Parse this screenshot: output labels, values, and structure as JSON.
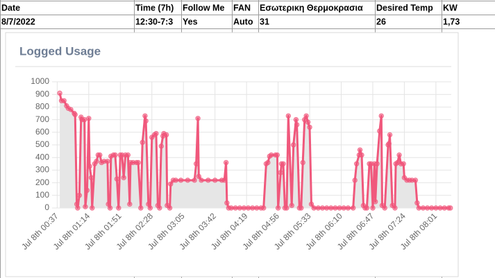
{
  "table": {
    "header": [
      "Date",
      "Time (7h)",
      "Follow Me",
      "FAN",
      "Εσωτερικη Θερμοκρασια",
      "Desired Temp",
      "KW"
    ],
    "rows": [
      [
        "8/7/2022",
        "12:30-7:3",
        "Yes",
        "Auto",
        "31",
        "26",
        "1,73"
      ]
    ]
  },
  "chart_data": {
    "type": "area",
    "title": "Logged Usage",
    "color": "#f0587c",
    "grid": true,
    "x": [
      40,
      42,
      45,
      48,
      50,
      53,
      57,
      58,
      60,
      61,
      63,
      65,
      66,
      69,
      70,
      72,
      74,
      75,
      77,
      78,
      81,
      83,
      85,
      87,
      89,
      92,
      96,
      97,
      99,
      100,
      103,
      105,
      107,
      109,
      111,
      113,
      115,
      117,
      120,
      122,
      123,
      126,
      130,
      132,
      135,
      137,
      140,
      141,
      144,
      146,
      148,
      151,
      153,
      155,
      157,
      159,
      161,
      162,
      165,
      166,
      169,
      170,
      173,
      176,
      182,
      190,
      198,
      200,
      202,
      203,
      206,
      214,
      222,
      230,
      233,
      235,
      236,
      238,
      241,
      246,
      251,
      256,
      261,
      266,
      271,
      276,
      279,
      282,
      284,
      286,
      288,
      293,
      295,
      296,
      299,
      300,
      302,
      304,
      306,
      308,
      312,
      314,
      317,
      318,
      321,
      323,
      325,
      327,
      329,
      331,
      333,
      335,
      338,
      343,
      348,
      353,
      358,
      363,
      368,
      373,
      378,
      384,
      386,
      388,
      391,
      392,
      394,
      396,
      398,
      400,
      403,
      405,
      407,
      409,
      410,
      412,
      415,
      417,
      418,
      421,
      425,
      426,
      427,
      430,
      433,
      434,
      436,
      438,
      440,
      443,
      444,
      447,
      450,
      453,
      457,
      459,
      461,
      466,
      471,
      476,
      481,
      486,
      491,
      496,
      498
    ],
    "values": [
      910,
      850,
      850,
      810,
      790,
      780,
      750,
      740,
      30,
      0,
      100,
      720,
      700,
      700,
      10,
      140,
      710,
      330,
      240,
      0,
      350,
      370,
      420,
      420,
      360,
      370,
      370,
      30,
      0,
      410,
      420,
      420,
      230,
      0,
      420,
      420,
      240,
      420,
      420,
      30,
      360,
      360,
      360,
      360,
      0,
      520,
      730,
      690,
      30,
      0,
      560,
      580,
      590,
      20,
      0,
      490,
      570,
      590,
      580,
      20,
      0,
      190,
      220,
      220,
      220,
      220,
      220,
      350,
      710,
      250,
      220,
      220,
      220,
      220,
      220,
      360,
      40,
      0,
      0,
      0,
      0,
      0,
      0,
      0,
      0,
      0,
      0,
      350,
      360,
      410,
      420,
      420,
      420,
      0,
      280,
      350,
      350,
      0,
      0,
      730,
      20,
      500,
      700,
      660,
      0,
      0,
      360,
      700,
      730,
      680,
      640,
      30,
      0,
      0,
      0,
      0,
      0,
      0,
      0,
      0,
      0,
      0,
      220,
      350,
      420,
      460,
      420,
      20,
      0,
      0,
      350,
      350,
      0,
      350,
      50,
      350,
      610,
      730,
      20,
      0,
      500,
      510,
      580,
      20,
      0,
      350,
      360,
      420,
      350,
      350,
      240,
      220,
      220,
      220,
      220,
      40,
      0,
      0,
      0,
      0,
      0,
      0,
      0,
      0,
      0
    ],
    "xlim": [
      31,
      499
    ],
    "xticks": [
      {
        "value": 37,
        "label": "Jul 8th 00:37"
      },
      {
        "value": 74,
        "label": "Jul 8th 01:14"
      },
      {
        "value": 111,
        "label": "Jul 8th 01:51"
      },
      {
        "value": 148,
        "label": "Jul 8th 02:28"
      },
      {
        "value": 185,
        "label": "Jul 8th 03:05"
      },
      {
        "value": 222,
        "label": "Jul 8th 03:42"
      },
      {
        "value": 259,
        "label": "Jul 8th 04:19"
      },
      {
        "value": 296,
        "label": "Jul 8th 04:56"
      },
      {
        "value": 333,
        "label": "Jul 8th 05:33"
      },
      {
        "value": 370,
        "label": "Jul 8th 06:10"
      },
      {
        "value": 407,
        "label": "Jul 8th 06:47"
      },
      {
        "value": 444,
        "label": "Jul 8th 07:24"
      },
      {
        "value": 481,
        "label": "Jul 8th 08:01"
      }
    ],
    "ylim": [
      0,
      1000
    ],
    "yticks": [
      0,
      100,
      200,
      300,
      400,
      500,
      600,
      700,
      800,
      900,
      1000
    ]
  }
}
